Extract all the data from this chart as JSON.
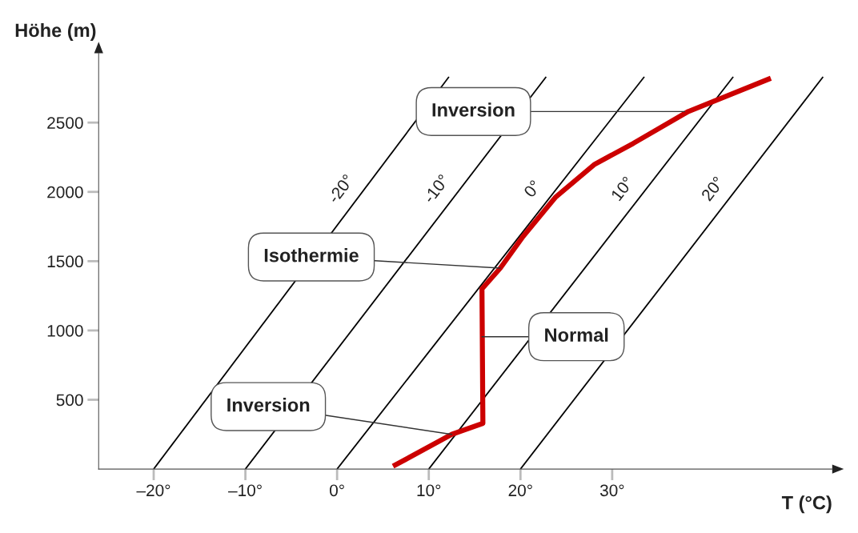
{
  "chart_data": {
    "type": "line",
    "xlabel": "T (°C)",
    "ylabel": "Höhe (m)",
    "xlim": [
      -26,
      54
    ],
    "ylim": [
      0,
      3000
    ],
    "xticks": [
      {
        "value": -20,
        "label": "–20°"
      },
      {
        "value": -10,
        "label": "–10°"
      },
      {
        "value": 0,
        "label": "0°"
      },
      {
        "value": 10,
        "label": "10°"
      },
      {
        "value": 20,
        "label": "20°"
      },
      {
        "value": 30,
        "label": "30°"
      }
    ],
    "yticks": [
      500,
      1000,
      1500,
      2000,
      2500
    ],
    "grid": false,
    "legend": false,
    "marker": "none",
    "line_style": "solid",
    "series": [
      {
        "name": "-20°",
        "color": "#000000",
        "x": [
          -20,
          12.2
        ],
        "values": [
          0,
          2830
        ]
      },
      {
        "name": "-10°",
        "color": "#000000",
        "x": [
          -10,
          22.8
        ],
        "values": [
          0,
          2830
        ]
      },
      {
        "name": "0°",
        "color": "#000000",
        "x": [
          0,
          33.5
        ],
        "values": [
          0,
          2830
        ]
      },
      {
        "name": "10°",
        "color": "#000000",
        "x": [
          10,
          43.2
        ],
        "values": [
          0,
          2830
        ]
      },
      {
        "name": "20°",
        "color": "#000000",
        "x": [
          20,
          53
        ],
        "values": [
          0,
          2830
        ]
      },
      {
        "color": "#cc0000",
        "x": [
          6.1,
          12.5,
          15.9,
          15.8,
          17.8,
          20.3,
          23.8,
          28.1,
          32.3,
          38.3,
          47.3
        ],
        "values": [
          20,
          250,
          330,
          1300,
          1450,
          1680,
          1960,
          2200,
          2350,
          2580,
          2820
        ]
      }
    ],
    "annotations": [
      {
        "text": "Inversion",
        "x": 37.9,
        "y": 2580
      },
      {
        "text": "Isothermie",
        "x": 17.8,
        "y": 1450
      },
      {
        "text": "Normal",
        "x": 15.8,
        "y": 955
      },
      {
        "text": "Inversion",
        "x": 12.5,
        "y": 250
      }
    ]
  }
}
